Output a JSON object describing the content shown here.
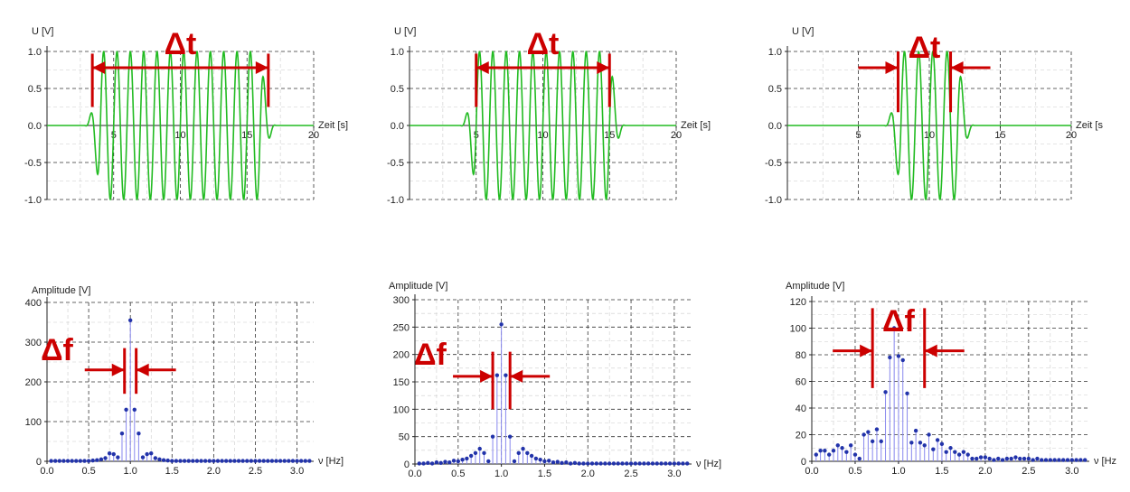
{
  "chart_data": [
    {
      "type": "line",
      "ylabel": "U [V]",
      "xlabel": "Zeit [s]",
      "xlim": [
        0,
        20
      ],
      "ylim": [
        -1,
        1
      ],
      "xticks": [
        "5",
        "10",
        "15",
        "20"
      ],
      "yticks": [
        "1.0",
        "0.5",
        "0.0",
        "-0.5",
        "-1.0"
      ],
      "grid": true,
      "signal": {
        "frequency_hz": 1.0,
        "window_start": 4,
        "window_end": 16,
        "amplitude": 1.0
      },
      "span_marker": {
        "label": "Δt",
        "from": 3.4,
        "to": 16.6
      },
      "line_color": "#22bb22",
      "marker_color": "#cc0000"
    },
    {
      "type": "line",
      "ylabel": "U [V]",
      "xlabel": "Zeit [s]",
      "xlim": [
        0,
        20
      ],
      "ylim": [
        -1,
        1
      ],
      "xticks": [
        "5",
        "10",
        "15",
        "20"
      ],
      "yticks": [
        "1.0",
        "0.5",
        "0.0",
        "-0.5",
        "-1.0"
      ],
      "grid": true,
      "signal": {
        "frequency_hz": 1.0,
        "window_start": 5,
        "window_end": 15,
        "amplitude": 1.0
      },
      "span_marker": {
        "label": "Δt",
        "from": 5.0,
        "to": 15.0
      },
      "line_color": "#22bb22",
      "marker_color": "#cc0000"
    },
    {
      "type": "line",
      "ylabel": "U [V]",
      "xlabel": "Zeit [s",
      "xlim": [
        0,
        20
      ],
      "ylim": [
        -1,
        1
      ],
      "xticks": [
        "5",
        "10",
        "15",
        "20"
      ],
      "yticks": [
        "1.0",
        "0.5",
        "0.0",
        "-0.5",
        "-1.0"
      ],
      "grid": true,
      "signal": {
        "frequency_hz": 1.0,
        "window_start": 8,
        "window_end": 12,
        "amplitude": 1.0
      },
      "span_marker": {
        "label": "Δt",
        "from": 7.8,
        "to": 11.5
      },
      "line_color": "#22bb22",
      "marker_color": "#cc0000"
    },
    {
      "type": "scatter",
      "ylabel": "Amplitude [V]",
      "xlabel": "ν [Hz]",
      "xlim": [
        0,
        3.2
      ],
      "ylim": [
        0,
        400
      ],
      "xticks": [
        "0.0",
        "0.5",
        "1.0",
        "1.5",
        "2.0",
        "2.5",
        "3.0"
      ],
      "yticks": [
        "400",
        "300",
        "200",
        "100",
        "0"
      ],
      "grid": true,
      "x": [
        0.05,
        0.1,
        0.15,
        0.2,
        0.25,
        0.3,
        0.35,
        0.4,
        0.45,
        0.5,
        0.55,
        0.6,
        0.65,
        0.7,
        0.75,
        0.8,
        0.85,
        0.9,
        0.95,
        1.0,
        1.05,
        1.1,
        1.15,
        1.2,
        1.25,
        1.3,
        1.35,
        1.4,
        1.45,
        1.5,
        1.55,
        1.6,
        1.65,
        1.7,
        1.75,
        1.8,
        1.85,
        1.9,
        1.95,
        2.0,
        2.05,
        2.1,
        2.15,
        2.2,
        2.25,
        2.3,
        2.35,
        2.4,
        2.45,
        2.5,
        2.55,
        2.6,
        2.65,
        2.7,
        2.75,
        2.8,
        2.85,
        2.9,
        2.95,
        3.0,
        3.05,
        3.1,
        3.15
      ],
      "values": [
        1,
        1,
        1,
        1,
        1,
        1,
        1,
        1,
        1,
        1,
        2,
        3,
        5,
        8,
        20,
        18,
        10,
        70,
        130,
        355,
        130,
        70,
        10,
        18,
        20,
        8,
        5,
        3,
        2,
        1,
        1,
        1,
        1,
        1,
        1,
        1,
        1,
        1,
        1,
        1,
        1,
        1,
        1,
        1,
        1,
        1,
        1,
        1,
        1,
        1,
        1,
        1,
        1,
        1,
        1,
        1,
        1,
        1,
        1,
        1,
        1,
        1,
        1
      ],
      "span_marker": {
        "label": "Δf",
        "from": 0.93,
        "to": 1.07
      },
      "stem_color": "#8888ee",
      "point_color": "#2233aa",
      "marker_color": "#cc0000"
    },
    {
      "type": "scatter",
      "ylabel": "Amplitude [V]",
      "xlabel": "ν [Hz]",
      "xlim": [
        0,
        3.2
      ],
      "ylim": [
        0,
        300
      ],
      "xticks": [
        "0.0",
        "0.5",
        "1.0",
        "1.5",
        "2.0",
        "2.5",
        "3.0"
      ],
      "yticks": [
        "300",
        "250",
        "200",
        "150",
        "100",
        "50",
        "0"
      ],
      "grid": true,
      "x": [
        0.05,
        0.1,
        0.15,
        0.2,
        0.25,
        0.3,
        0.35,
        0.4,
        0.45,
        0.5,
        0.55,
        0.6,
        0.65,
        0.7,
        0.75,
        0.8,
        0.85,
        0.9,
        0.95,
        1.0,
        1.05,
        1.1,
        1.15,
        1.2,
        1.25,
        1.3,
        1.35,
        1.4,
        1.45,
        1.5,
        1.55,
        1.6,
        1.65,
        1.7,
        1.75,
        1.8,
        1.85,
        1.9,
        1.95,
        2.0,
        2.05,
        2.1,
        2.15,
        2.2,
        2.25,
        2.3,
        2.35,
        2.4,
        2.45,
        2.5,
        2.55,
        2.6,
        2.65,
        2.7,
        2.75,
        2.8,
        2.85,
        2.9,
        2.95,
        3.0,
        3.05,
        3.1,
        3.15
      ],
      "values": [
        1,
        1,
        2,
        1,
        3,
        2,
        4,
        3,
        6,
        5,
        8,
        10,
        15,
        20,
        28,
        20,
        5,
        50,
        162,
        255,
        162,
        50,
        5,
        20,
        28,
        20,
        15,
        10,
        8,
        5,
        6,
        3,
        4,
        2,
        3,
        1,
        2,
        1,
        1,
        1,
        1,
        1,
        1,
        1,
        1,
        1,
        1,
        1,
        1,
        1,
        1,
        1,
        1,
        1,
        1,
        1,
        1,
        1,
        1,
        1,
        1,
        1,
        1
      ],
      "span_marker": {
        "label": "Δf",
        "from": 0.9,
        "to": 1.1
      },
      "stem_color": "#8888ee",
      "point_color": "#2233aa",
      "marker_color": "#cc0000"
    },
    {
      "type": "scatter",
      "ylabel": "Amplitude [V]",
      "xlabel": "ν [Hz",
      "xlim": [
        0,
        3.2
      ],
      "ylim": [
        0,
        120
      ],
      "xticks": [
        "0.0",
        "0.5",
        "1.0",
        "1.5",
        "2.0",
        "2.5",
        "3.0"
      ],
      "yticks": [
        "120",
        "100",
        "80",
        "60",
        "40",
        "20",
        "0"
      ],
      "grid": true,
      "x": [
        0.05,
        0.1,
        0.15,
        0.2,
        0.25,
        0.3,
        0.35,
        0.4,
        0.45,
        0.5,
        0.55,
        0.6,
        0.65,
        0.7,
        0.75,
        0.8,
        0.85,
        0.9,
        0.95,
        1.0,
        1.05,
        1.1,
        1.15,
        1.2,
        1.25,
        1.3,
        1.35,
        1.4,
        1.45,
        1.5,
        1.55,
        1.6,
        1.65,
        1.7,
        1.75,
        1.8,
        1.85,
        1.9,
        1.95,
        2.0,
        2.05,
        2.1,
        2.15,
        2.2,
        2.25,
        2.3,
        2.35,
        2.4,
        2.45,
        2.5,
        2.55,
        2.6,
        2.65,
        2.7,
        2.75,
        2.8,
        2.85,
        2.9,
        2.95,
        3.0,
        3.05,
        3.1,
        3.15
      ],
      "values": [
        5,
        8,
        8,
        5,
        8,
        12,
        10,
        7,
        12,
        5,
        2,
        20,
        22,
        15,
        24,
        15,
        52,
        78,
        100,
        79,
        76,
        51,
        14,
        23,
        14,
        12,
        20,
        9,
        16,
        13,
        7,
        10,
        7,
        5,
        7,
        5,
        2,
        2,
        3,
        3,
        2,
        1,
        2,
        1,
        2,
        2,
        3,
        2,
        2,
        2,
        1,
        2,
        1,
        1,
        1,
        1,
        1,
        1,
        1,
        1,
        1,
        1,
        1
      ],
      "span_marker": {
        "label": "Δf",
        "from": 0.7,
        "to": 1.3
      },
      "stem_color": "#8888ee",
      "point_color": "#2233aa",
      "marker_color": "#cc0000"
    }
  ]
}
